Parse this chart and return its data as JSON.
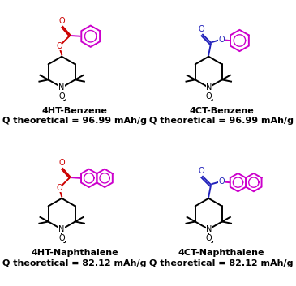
{
  "background": "#ffffff",
  "molecules": [
    {
      "name": "4HT-Benzene",
      "capacity": "Q theoretical = 96.99 mAh/g",
      "ec": "#cc0000",
      "rc": "#cc00cc",
      "bc": "#000000",
      "ring": "benzene",
      "ht": true
    },
    {
      "name": "4CT-Benzene",
      "capacity": "Q theoretical = 96.99 mAh/g",
      "ec": "#2222bb",
      "rc": "#cc00cc",
      "bc": "#000000",
      "ring": "benzene",
      "ht": false
    },
    {
      "name": "4HT-Naphthalene",
      "capacity": "Q theoretical = 82.12 mAh/g",
      "ec": "#cc0000",
      "rc": "#cc00cc",
      "bc": "#000000",
      "ring": "naphthalene",
      "ht": true
    },
    {
      "name": "4CT-Naphthalene",
      "capacity": "Q theoretical = 82.12 mAh/g",
      "ec": "#2222bb",
      "rc": "#cc00cc",
      "bc": "#000000",
      "ring": "naphthalene",
      "ht": false
    }
  ],
  "name_fs": 8,
  "cap_fs": 8
}
